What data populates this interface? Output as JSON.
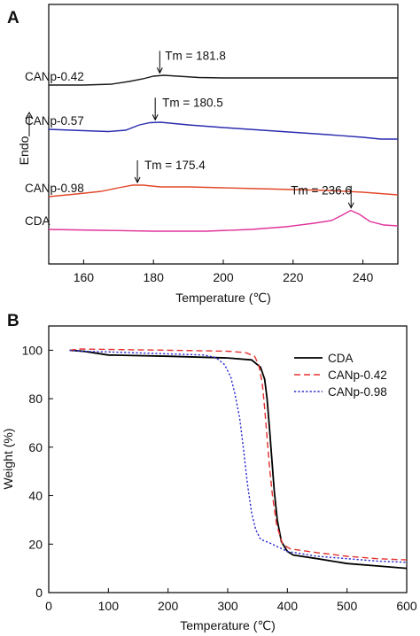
{
  "chart_data": [
    {
      "panel": "A",
      "type": "line",
      "title": "",
      "xlabel": "Temperature (℃)",
      "ylabel": "Endo",
      "ylabel_arrow": "up",
      "xlim": [
        150,
        250
      ],
      "xticks": [
        160,
        180,
        200,
        220,
        240
      ],
      "yticks": [],
      "grid": false,
      "legend": "none",
      "series": [
        {
          "name": "CANp-0.42",
          "color": "#1a1a1a",
          "tm": 181.8,
          "tm_label": "Tm = 181.8",
          "points": [
            [
              150,
              96
            ],
            [
              160,
              96
            ],
            [
              168,
              95
            ],
            [
              173,
              92
            ],
            [
              177,
              89
            ],
            [
              180,
              86
            ],
            [
              183,
              85
            ],
            [
              187,
              86
            ],
            [
              193,
              87.5
            ],
            [
              200,
              88
            ],
            [
              215,
              88
            ],
            [
              230,
              88
            ],
            [
              240,
              88
            ],
            [
              250,
              88
            ]
          ]
        },
        {
          "name": "CANp-0.57",
          "color": "#2b2bb0",
          "tm": 180.5,
          "tm_label": "Tm = 180.5",
          "points": [
            [
              150,
              146
            ],
            [
              160,
              147.5
            ],
            [
              167,
              148.5
            ],
            [
              172,
              147
            ],
            [
              176,
              141
            ],
            [
              179,
              138.5
            ],
            [
              182,
              138
            ],
            [
              190,
              141
            ],
            [
              200,
              144
            ],
            [
              215,
              148
            ],
            [
              230,
              152
            ],
            [
              240,
              155
            ],
            [
              245,
              157
            ],
            [
              250,
              157
            ]
          ]
        },
        {
          "name": "CANp-0.98",
          "color": "#e2482a",
          "tm": 175.4,
          "tm_label": "Tm = 175.4",
          "points": [
            [
              150,
              222
            ],
            [
              158,
              219
            ],
            [
              165,
              216
            ],
            [
              170,
              212
            ],
            [
              174,
              209
            ],
            [
              177,
              209
            ],
            [
              182,
              211
            ],
            [
              190,
              211
            ],
            [
              200,
              212
            ],
            [
              210,
              213
            ],
            [
              220,
              214
            ],
            [
              230,
              215
            ],
            [
              240,
              217
            ],
            [
              250,
              220
            ]
          ]
        },
        {
          "name": "CDA",
          "color": "#e0339a",
          "tm": 236.6,
          "tm_label": "Tm = 236.6",
          "points": [
            [
              150,
              259
            ],
            [
              165,
              260
            ],
            [
              180,
              261
            ],
            [
              195,
              261
            ],
            [
              208,
              259
            ],
            [
              218,
              256
            ],
            [
              226,
              252
            ],
            [
              231,
              249
            ],
            [
              234,
              243
            ],
            [
              236.5,
              237.5
            ],
            [
              239,
              242
            ],
            [
              242,
              250
            ],
            [
              246,
              254
            ],
            [
              250,
              255
            ]
          ]
        }
      ]
    },
    {
      "panel": "B",
      "type": "line",
      "title": "",
      "xlabel": "Temperature (℃)",
      "ylabel": "Weight (%)",
      "xlim": [
        0,
        600
      ],
      "ylim": [
        0,
        110
      ],
      "xticks": [
        0,
        100,
        200,
        300,
        400,
        500,
        600
      ],
      "yticks": [
        0,
        20,
        40,
        60,
        80,
        100
      ],
      "grid": false,
      "legend": "top-right",
      "series": [
        {
          "name": "CDA",
          "color": "#000000",
          "dash": "solid",
          "points": [
            [
              35,
              100
            ],
            [
              60,
              99.5
            ],
            [
              100,
              98
            ],
            [
              200,
              97.5
            ],
            [
              300,
              96.8
            ],
            [
              340,
              96
            ],
            [
              355,
              93
            ],
            [
              362,
              88
            ],
            [
              366,
              80
            ],
            [
              370,
              68
            ],
            [
              374,
              55
            ],
            [
              378,
              42
            ],
            [
              383,
              30
            ],
            [
              390,
              21
            ],
            [
              400,
              17
            ],
            [
              410,
              15.5
            ],
            [
              450,
              14
            ],
            [
              500,
              12
            ],
            [
              550,
              11
            ],
            [
              600,
              10
            ]
          ]
        },
        {
          "name": "CANp-0.42",
          "color": "#e53030",
          "dash": "dashed",
          "points": [
            [
              35,
              100
            ],
            [
              50,
              100.5
            ],
            [
              100,
              100.3
            ],
            [
              200,
              100
            ],
            [
              300,
              99.6
            ],
            [
              330,
              99
            ],
            [
              345,
              97.5
            ],
            [
              352,
              94
            ],
            [
              358,
              86
            ],
            [
              362,
              76
            ],
            [
              366,
              64
            ],
            [
              370,
              52
            ],
            [
              375,
              40
            ],
            [
              382,
              28
            ],
            [
              392,
              20
            ],
            [
              405,
              18
            ],
            [
              450,
              16.5
            ],
            [
              500,
              15
            ],
            [
              550,
              14
            ],
            [
              600,
              13.5
            ]
          ]
        },
        {
          "name": "CANp-0.98",
          "color": "#2a2ad0",
          "dash": "dotted",
          "points": [
            [
              35,
              100
            ],
            [
              60,
              99.5
            ],
            [
              100,
              99.3
            ],
            [
              200,
              98.5
            ],
            [
              260,
              98
            ],
            [
              280,
              97
            ],
            [
              295,
              94
            ],
            [
              305,
              89
            ],
            [
              312,
              82
            ],
            [
              320,
              72
            ],
            [
              327,
              58
            ],
            [
              333,
              45
            ],
            [
              340,
              33
            ],
            [
              347,
              26
            ],
            [
              355,
              22
            ],
            [
              370,
              20.5
            ],
            [
              400,
              17
            ],
            [
              450,
              15
            ],
            [
              500,
              14
            ],
            [
              550,
              13
            ],
            [
              600,
              12.5
            ]
          ]
        }
      ]
    }
  ]
}
